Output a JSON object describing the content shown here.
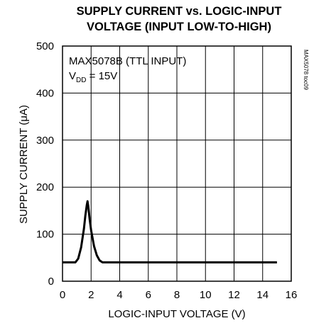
{
  "chart_data": {
    "type": "line",
    "title_line1": "SUPPLY CURRENT vs. LOGIC-INPUT",
    "title_line2": "VOLTAGE (INPUT LOW-TO-HIGH)",
    "xlabel": "LOGIC-INPUT VOLTAGE (V)",
    "ylabel": "SUPPLY CURRENT (μA)",
    "xlim": [
      0,
      16
    ],
    "ylim": [
      0,
      500
    ],
    "xticks": [
      0,
      2,
      4,
      6,
      8,
      10,
      12,
      14,
      16
    ],
    "yticks": [
      0,
      100,
      200,
      300,
      400,
      500
    ],
    "grid": true,
    "annotation": {
      "line1": "MAX5078B (TTL INPUT)",
      "vdd_main": "V",
      "vdd_sub": "DD",
      "vdd_value": " = 15V"
    },
    "side_label": "MAX5078 toc09",
    "series": [
      {
        "x": [
          0,
          0.9,
          1.1,
          1.3,
          1.5,
          1.6,
          1.7,
          1.75,
          1.8,
          1.9,
          2.0,
          2.2,
          2.4,
          2.6,
          2.8,
          3.0,
          4,
          6,
          8,
          10,
          12,
          14,
          15
        ],
        "y": [
          40,
          40,
          48,
          72,
          112,
          140,
          162,
          170,
          160,
          132,
          108,
          75,
          55,
          44,
          40,
          40,
          40,
          40,
          40,
          40,
          40,
          40,
          40
        ]
      }
    ]
  }
}
